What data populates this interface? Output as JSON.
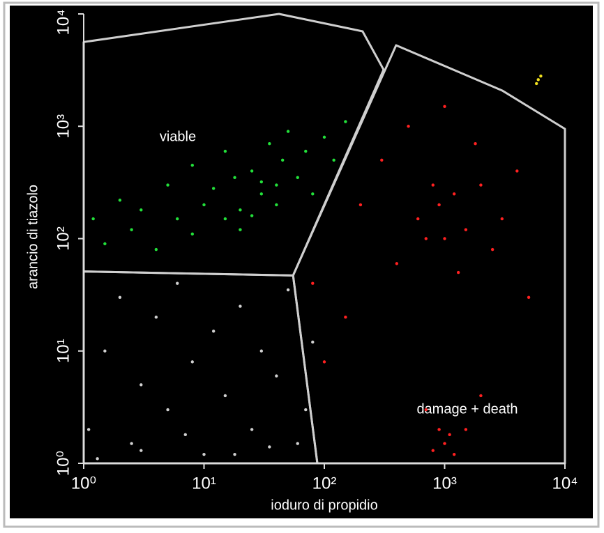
{
  "chart_data": {
    "type": "scatter",
    "x_label": "ioduro di propidio",
    "y_label": "arancio di tiazolo",
    "xscale": "log",
    "yscale": "log",
    "xlim": [
      1,
      10000
    ],
    "ylim": [
      1,
      10000
    ],
    "xticks": [
      {
        "value": 1,
        "label": "10⁰"
      },
      {
        "value": 10,
        "label": "10¹"
      },
      {
        "value": 100,
        "label": "10²"
      },
      {
        "value": 1000,
        "label": "10³"
      },
      {
        "value": 10000,
        "label": "10⁴"
      }
    ],
    "yticks": [
      {
        "value": 1,
        "label": "10⁰"
      },
      {
        "value": 10,
        "label": "10¹"
      },
      {
        "value": 100,
        "label": "10²"
      },
      {
        "value": 1000,
        "label": "10³"
      },
      {
        "value": 10000,
        "label": "10⁴"
      }
    ],
    "annotations": [
      "viable",
      "damage + death"
    ],
    "gates": [
      {
        "x": [
          1,
          42,
          208,
          311,
          55,
          1
        ],
        "y": [
          5623,
          10000,
          7000,
          3190,
          47,
          51
        ]
      },
      {
        "x": [
          55,
          395,
          3010,
          10000,
          10000,
          87.5
        ],
        "y": [
          47,
          5260,
          2080,
          948,
          1,
          1
        ]
      },
      {
        "x": [
          1,
          55,
          87.5,
          1
        ],
        "y": [
          51,
          47,
          1,
          1
        ]
      }
    ],
    "series": [
      {
        "color": "#22e03a",
        "x": [
          1.2,
          1.5,
          2,
          2.5,
          3,
          4,
          5,
          6,
          8,
          10,
          12,
          15,
          18,
          20,
          25,
          30,
          35,
          40,
          45,
          50,
          60,
          70,
          80,
          100,
          120,
          150,
          8,
          15,
          25,
          40,
          20,
          30
        ],
        "y": [
          150,
          90,
          220,
          120,
          180,
          80,
          300,
          150,
          450,
          200,
          280,
          600,
          350,
          180,
          400,
          250,
          700,
          300,
          500,
          900,
          350,
          600,
          250,
          800,
          500,
          1100,
          110,
          150,
          160,
          200,
          120,
          320
        ]
      },
      {
        "color": "#ff2020",
        "x": [
          80,
          100,
          150,
          200,
          300,
          400,
          500,
          600,
          700,
          800,
          900,
          1000,
          1000,
          1200,
          1300,
          1500,
          1800,
          2000,
          2500,
          3000,
          4000,
          5000,
          700,
          900,
          1000,
          1200,
          1500,
          2000,
          1100,
          800
        ],
        "y": [
          40,
          8,
          20,
          200,
          500,
          60,
          1000,
          150,
          100,
          300,
          200,
          100,
          1500,
          250,
          50,
          120,
          700,
          300,
          80,
          150,
          400,
          30,
          3,
          2,
          1.5,
          1.2,
          2,
          4,
          1.8,
          1.3
        ]
      },
      {
        "color": "#d0d0d0",
        "x": [
          1.1,
          1.5,
          2,
          2.5,
          3,
          4,
          5,
          6,
          8,
          10,
          12,
          15,
          20,
          25,
          30,
          40,
          50,
          60,
          70,
          80,
          1.3,
          3,
          7,
          18,
          35
        ],
        "y": [
          2,
          10,
          30,
          1.5,
          5,
          20,
          3,
          40,
          8,
          1.2,
          15,
          4,
          25,
          2,
          10,
          6,
          35,
          1.5,
          3,
          12,
          1.1,
          1.3,
          1.8,
          1.2,
          1.4
        ]
      },
      {
        "color": "#f0e020",
        "x": [
          6000,
          6300,
          5800
        ],
        "y": [
          2600,
          2800,
          2400
        ]
      }
    ]
  }
}
